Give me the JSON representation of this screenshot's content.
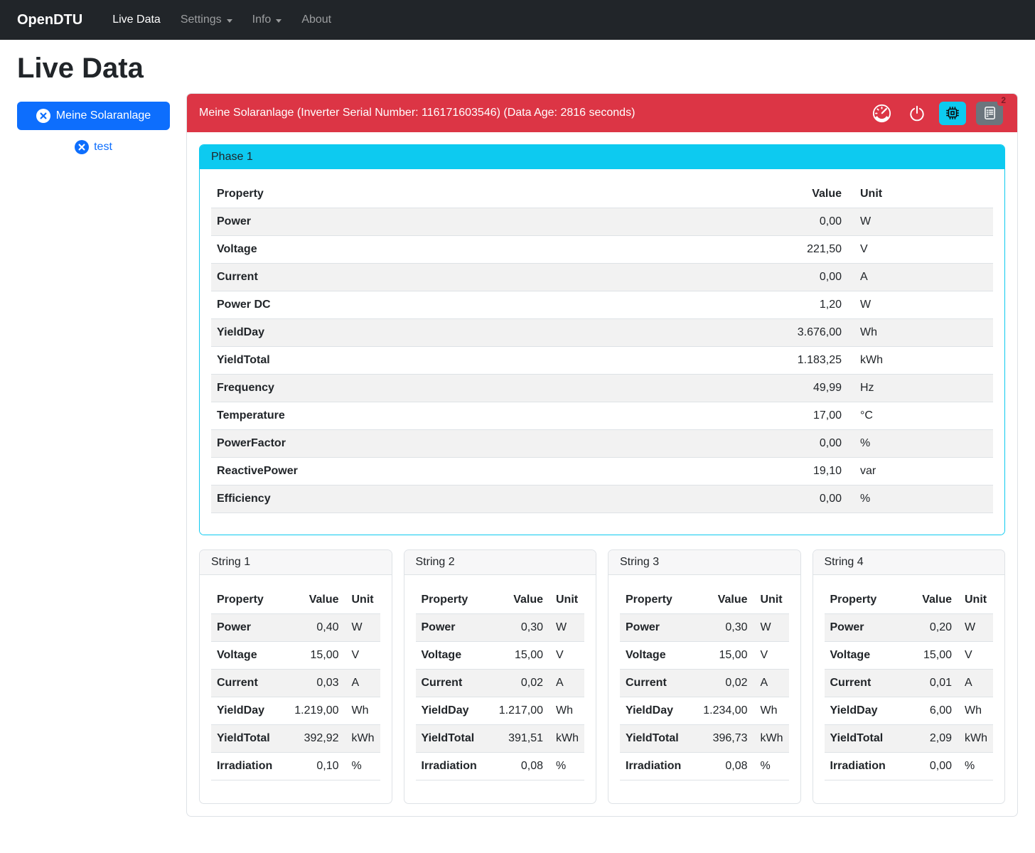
{
  "navbar": {
    "brand": "OpenDTU",
    "items": [
      {
        "label": "Live Data",
        "active": true,
        "dropdown": false
      },
      {
        "label": "Settings",
        "active": false,
        "dropdown": true
      },
      {
        "label": "Info",
        "active": false,
        "dropdown": true
      },
      {
        "label": "About",
        "active": false,
        "dropdown": false
      }
    ]
  },
  "page": {
    "title": "Live Data"
  },
  "sidebar": {
    "inverter_button": {
      "label": "Meine Solaranlage",
      "icon": "x-circle-icon"
    },
    "test_link": {
      "label": "test",
      "icon": "x-circle-icon"
    }
  },
  "inverter_card": {
    "header": {
      "title": "Meine Solaranlage (Inverter Serial Number: 116171603546) (Data Age: 2816 seconds)",
      "icons": [
        "speedometer-icon",
        "power-icon",
        "cpu-icon",
        "journal-text-icon"
      ],
      "journal_badge": "2"
    },
    "phase": {
      "title": "Phase 1",
      "columns": [
        "Property",
        "Value",
        "Unit"
      ],
      "rows": [
        {
          "property": "Power",
          "value": "0,00",
          "unit": "W"
        },
        {
          "property": "Voltage",
          "value": "221,50",
          "unit": "V"
        },
        {
          "property": "Current",
          "value": "0,00",
          "unit": "A"
        },
        {
          "property": "Power DC",
          "value": "1,20",
          "unit": "W"
        },
        {
          "property": "YieldDay",
          "value": "3.676,00",
          "unit": "Wh"
        },
        {
          "property": "YieldTotal",
          "value": "1.183,25",
          "unit": "kWh"
        },
        {
          "property": "Frequency",
          "value": "49,99",
          "unit": "Hz"
        },
        {
          "property": "Temperature",
          "value": "17,00",
          "unit": "°C"
        },
        {
          "property": "PowerFactor",
          "value": "0,00",
          "unit": "%"
        },
        {
          "property": "ReactivePower",
          "value": "19,10",
          "unit": "var"
        },
        {
          "property": "Efficiency",
          "value": "0,00",
          "unit": "%"
        }
      ]
    },
    "strings": [
      {
        "title": "String 1",
        "columns": [
          "Property",
          "Value",
          "Unit"
        ],
        "rows": [
          {
            "property": "Power",
            "value": "0,40",
            "unit": "W"
          },
          {
            "property": "Voltage",
            "value": "15,00",
            "unit": "V"
          },
          {
            "property": "Current",
            "value": "0,03",
            "unit": "A"
          },
          {
            "property": "YieldDay",
            "value": "1.219,00",
            "unit": "Wh"
          },
          {
            "property": "YieldTotal",
            "value": "392,92",
            "unit": "kWh"
          },
          {
            "property": "Irradiation",
            "value": "0,10",
            "unit": "%"
          }
        ]
      },
      {
        "title": "String 2",
        "columns": [
          "Property",
          "Value",
          "Unit"
        ],
        "rows": [
          {
            "property": "Power",
            "value": "0,30",
            "unit": "W"
          },
          {
            "property": "Voltage",
            "value": "15,00",
            "unit": "V"
          },
          {
            "property": "Current",
            "value": "0,02",
            "unit": "A"
          },
          {
            "property": "YieldDay",
            "value": "1.217,00",
            "unit": "Wh"
          },
          {
            "property": "YieldTotal",
            "value": "391,51",
            "unit": "kWh"
          },
          {
            "property": "Irradiation",
            "value": "0,08",
            "unit": "%"
          }
        ]
      },
      {
        "title": "String 3",
        "columns": [
          "Property",
          "Value",
          "Unit"
        ],
        "rows": [
          {
            "property": "Power",
            "value": "0,30",
            "unit": "W"
          },
          {
            "property": "Voltage",
            "value": "15,00",
            "unit": "V"
          },
          {
            "property": "Current",
            "value": "0,02",
            "unit": "A"
          },
          {
            "property": "YieldDay",
            "value": "1.234,00",
            "unit": "Wh"
          },
          {
            "property": "YieldTotal",
            "value": "396,73",
            "unit": "kWh"
          },
          {
            "property": "Irradiation",
            "value": "0,08",
            "unit": "%"
          }
        ]
      },
      {
        "title": "String 4",
        "columns": [
          "Property",
          "Value",
          "Unit"
        ],
        "rows": [
          {
            "property": "Power",
            "value": "0,20",
            "unit": "W"
          },
          {
            "property": "Voltage",
            "value": "15,00",
            "unit": "V"
          },
          {
            "property": "Current",
            "value": "0,01",
            "unit": "A"
          },
          {
            "property": "YieldDay",
            "value": "6,00",
            "unit": "Wh"
          },
          {
            "property": "YieldTotal",
            "value": "2,09",
            "unit": "kWh"
          },
          {
            "property": "Irradiation",
            "value": "0,00",
            "unit": "%"
          }
        ]
      }
    ]
  },
  "colors": {
    "navbar_bg": "#212529",
    "primary": "#0d6efd",
    "danger": "#dc3545",
    "info": "#0dcaf0",
    "secondary": "#6c757d",
    "striped_row": "#f2f2f2"
  }
}
